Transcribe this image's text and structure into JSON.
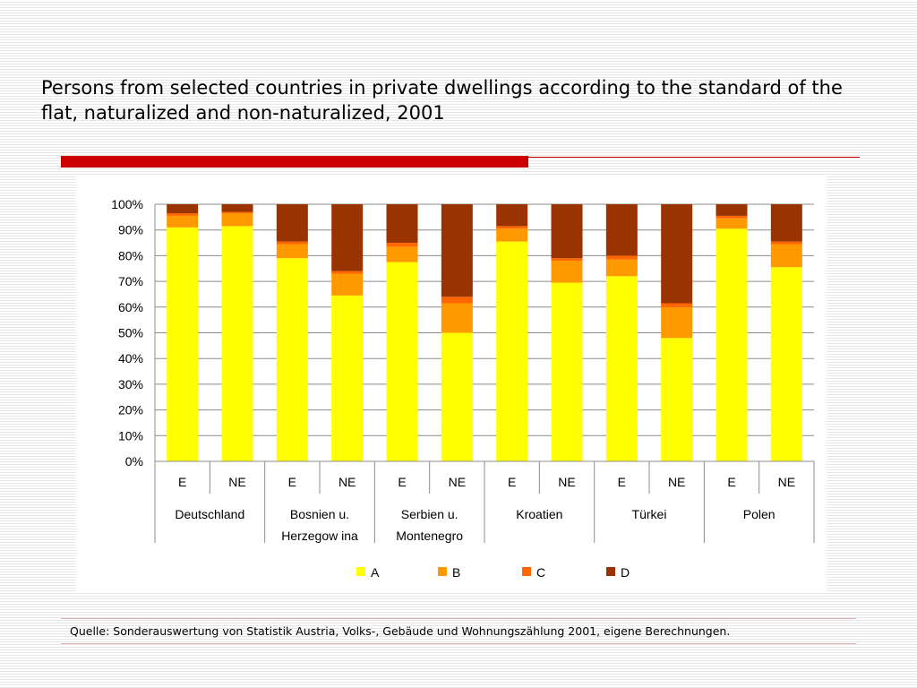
{
  "title": "Persons from selected countries in private dwellings according to the standard of the flat, naturalized and non-naturalized, 2001",
  "source": "Quelle: Sonderauswertung von Statistik Austria, Volks-, Gebäude und Wohnungszählung 2001, eigene Berechnungen.",
  "colors": {
    "accent": "#cc0000",
    "A": "#ffff00",
    "B": "#ff9900",
    "C": "#ff6600",
    "D": "#993300"
  },
  "chart_data": {
    "type": "bar",
    "stacked": true,
    "percent": true,
    "categories": [
      "E",
      "NE",
      "E",
      "NE",
      "E",
      "NE",
      "E",
      "NE",
      "E",
      "NE",
      "E",
      "NE"
    ],
    "groups": [
      {
        "lines": [
          "Deutschland"
        ],
        "size": 2
      },
      {
        "lines": [
          "Bosnien u.",
          "Herzegow ina"
        ],
        "size": 2
      },
      {
        "lines": [
          "Serbien u.",
          "Montenegro"
        ],
        "size": 2
      },
      {
        "lines": [
          "Kroatien"
        ],
        "size": 2
      },
      {
        "lines": [
          "Türkei"
        ],
        "size": 2
      },
      {
        "lines": [
          "Polen"
        ],
        "size": 2
      }
    ],
    "series": [
      {
        "name": "A",
        "values": [
          91,
          91.5,
          79,
          64.5,
          77.5,
          50,
          85.5,
          69.5,
          72,
          48,
          90.5,
          75.5
        ]
      },
      {
        "name": "B",
        "values": [
          4.5,
          5,
          5.5,
          8.5,
          6,
          11.5,
          5,
          8.5,
          6.5,
          12,
          4,
          9
        ]
      },
      {
        "name": "C",
        "values": [
          1,
          0.5,
          1,
          1,
          1.5,
          2.5,
          1,
          1,
          1.5,
          1.5,
          1,
          1
        ]
      },
      {
        "name": "D",
        "values": [
          3.5,
          3,
          14.5,
          26,
          15,
          36,
          8.5,
          21,
          20,
          38.5,
          4.5,
          14.5
        ]
      }
    ],
    "ylim": [
      0,
      100
    ],
    "yticks": [
      "0%",
      "10%",
      "20%",
      "30%",
      "40%",
      "50%",
      "60%",
      "70%",
      "80%",
      "90%",
      "100%"
    ],
    "grid": true,
    "legend_position": "bottom"
  }
}
